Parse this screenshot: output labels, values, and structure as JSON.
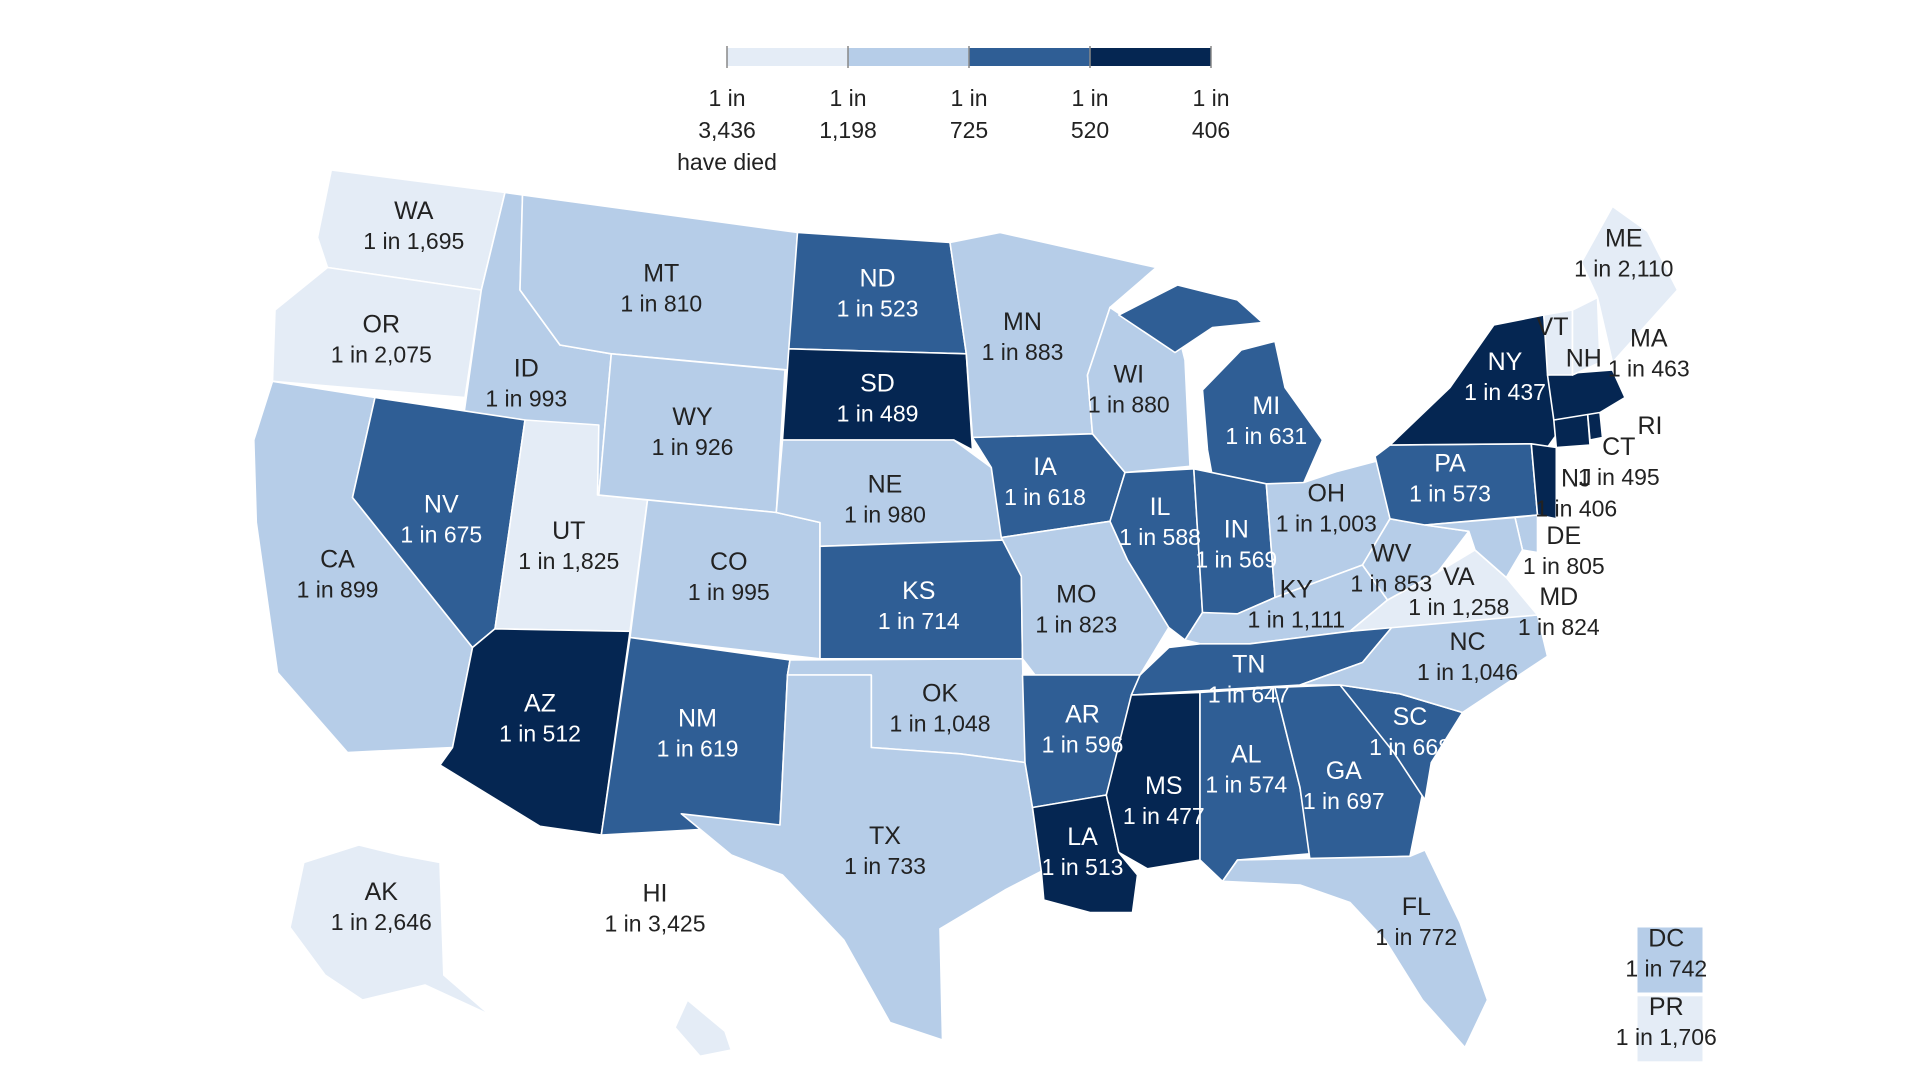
{
  "legend": {
    "breaks": [
      {
        "line1": "1 in",
        "line2": "3,436",
        "line3": "have died"
      },
      {
        "line1": "1 in",
        "line2": "1,198"
      },
      {
        "line1": "1 in",
        "line2": "725"
      },
      {
        "line1": "1 in",
        "line2": "520"
      },
      {
        "line1": "1 in",
        "line2": "406"
      }
    ],
    "colors": [
      "#e4ecf6",
      "#b6cde8",
      "#2f5e95",
      "#052652"
    ]
  },
  "states": [
    {
      "abbr": "WA",
      "value": "1 in 1,695",
      "bin": 0
    },
    {
      "abbr": "OR",
      "value": "1 in 2,075",
      "bin": 0
    },
    {
      "abbr": "CA",
      "value": "1 in 899",
      "bin": 1
    },
    {
      "abbr": "ID",
      "value": "1 in 993",
      "bin": 1
    },
    {
      "abbr": "NV",
      "value": "1 in 675",
      "bin": 2
    },
    {
      "abbr": "UT",
      "value": "1 in 1,825",
      "bin": 0
    },
    {
      "abbr": "AZ",
      "value": "1 in 512",
      "bin": 3
    },
    {
      "abbr": "MT",
      "value": "1 in 810",
      "bin": 1
    },
    {
      "abbr": "WY",
      "value": "1 in 926",
      "bin": 1
    },
    {
      "abbr": "CO",
      "value": "1 in 995",
      "bin": 1
    },
    {
      "abbr": "NM",
      "value": "1 in 619",
      "bin": 2
    },
    {
      "abbr": "ND",
      "value": "1 in 523",
      "bin": 2
    },
    {
      "abbr": "SD",
      "value": "1 in 489",
      "bin": 3
    },
    {
      "abbr": "NE",
      "value": "1 in 980",
      "bin": 1
    },
    {
      "abbr": "KS",
      "value": "1 in 714",
      "bin": 2
    },
    {
      "abbr": "OK",
      "value": "1 in 1,048",
      "bin": 1
    },
    {
      "abbr": "TX",
      "value": "1 in 733",
      "bin": 1
    },
    {
      "abbr": "MN",
      "value": "1 in 883",
      "bin": 1
    },
    {
      "abbr": "IA",
      "value": "1 in 618",
      "bin": 2
    },
    {
      "abbr": "MO",
      "value": "1 in 823",
      "bin": 1
    },
    {
      "abbr": "AR",
      "value": "1 in 596",
      "bin": 2
    },
    {
      "abbr": "LA",
      "value": "1 in 513",
      "bin": 3
    },
    {
      "abbr": "WI",
      "value": "1 in 880",
      "bin": 1
    },
    {
      "abbr": "IL",
      "value": "1 in 588",
      "bin": 2
    },
    {
      "abbr": "MI",
      "value": "1 in 631",
      "bin": 2
    },
    {
      "abbr": "IN",
      "value": "1 in 569",
      "bin": 2
    },
    {
      "abbr": "OH",
      "value": "1 in 1,003",
      "bin": 1
    },
    {
      "abbr": "KY",
      "value": "1 in 1,111",
      "bin": 1
    },
    {
      "abbr": "TN",
      "value": "1 in 647",
      "bin": 2
    },
    {
      "abbr": "MS",
      "value": "1 in 477",
      "bin": 3
    },
    {
      "abbr": "AL",
      "value": "1 in 574",
      "bin": 2
    },
    {
      "abbr": "GA",
      "value": "1 in 697",
      "bin": 2
    },
    {
      "abbr": "FL",
      "value": "1 in 772",
      "bin": 1
    },
    {
      "abbr": "SC",
      "value": "1 in 668",
      "bin": 2
    },
    {
      "abbr": "NC",
      "value": "1 in 1,046",
      "bin": 1
    },
    {
      "abbr": "VA",
      "value": "1 in 1,258",
      "bin": 0
    },
    {
      "abbr": "WV",
      "value": "1 in 853",
      "bin": 1
    },
    {
      "abbr": "PA",
      "value": "1 in 573",
      "bin": 2
    },
    {
      "abbr": "NY",
      "value": "1 in 437",
      "bin": 3
    },
    {
      "abbr": "NJ",
      "value": "1 in 406",
      "bin": 3
    },
    {
      "abbr": "DE",
      "value": "1 in 805",
      "bin": 1
    },
    {
      "abbr": "MD",
      "value": "1 in 824",
      "bin": 1
    },
    {
      "abbr": "CT",
      "value": "1 in 495",
      "bin": 3
    },
    {
      "abbr": "RI",
      "value": "",
      "bin": 3
    },
    {
      "abbr": "MA",
      "value": "1 in 463",
      "bin": 3
    },
    {
      "abbr": "VT",
      "value": "",
      "bin": 0
    },
    {
      "abbr": "NH",
      "value": "",
      "bin": 0
    },
    {
      "abbr": "ME",
      "value": "1 in 2,110",
      "bin": 0
    },
    {
      "abbr": "AK",
      "value": "1 in 2,646",
      "bin": 0
    },
    {
      "abbr": "HI",
      "value": "1 in 3,425",
      "bin": 0
    },
    {
      "abbr": "DC",
      "value": "1 in 742",
      "bin": 1
    },
    {
      "abbr": "PR",
      "value": "1 in 1,706",
      "bin": 0
    }
  ]
}
